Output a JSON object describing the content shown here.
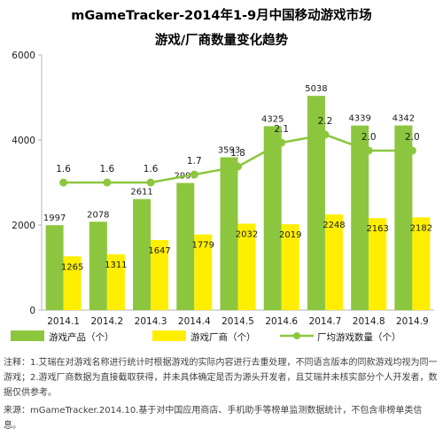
{
  "title": "mGameTracker-2014年1-9月中国移动游戏市场",
  "subtitle": "游戏/厂商数量变化趋势",
  "notes": {
    "note1": "注释：1.艾瑞在对游戏名称进行统计时根据游戏的实际内容进行去重处理，不同语言版本的同款游戏均视为同一游戏；2.游戏厂商数据为直接截取获得，并未具体确定是否为源头开发者，且艾瑞并未核实部分个人开发者，数据仅供参考。",
    "note2": "来源：mGameTracker.2014.10.基于对中国应用商店、手机助手等榜单监测数据统计，不包含非榜单类信息。"
  },
  "colors": {
    "products": "#8cc63f",
    "vendors": "#ffee00",
    "ratio": "#8cc63f",
    "axis": "#b3b3b3"
  },
  "chart_data": {
    "type": "bar",
    "categories": [
      "2014.1",
      "2014.2",
      "2014.3",
      "2014.4",
      "2014.5",
      "2014.6",
      "2014.7",
      "2014.8",
      "2014.9"
    ],
    "series": [
      {
        "name": "游戏产品（个）",
        "type": "bar",
        "values": [
          1997,
          2078,
          2611,
          2990,
          3593,
          4325,
          5038,
          4339,
          4342
        ]
      },
      {
        "name": "游戏厂商（个）",
        "type": "bar",
        "values": [
          1265,
          1311,
          1647,
          1779,
          2032,
          2019,
          2248,
          2163,
          2182
        ]
      },
      {
        "name": "厂均游戏数量（个）",
        "type": "line",
        "values": [
          1.6,
          1.6,
          1.6,
          1.7,
          1.8,
          2.1,
          2.2,
          2.0,
          2.0
        ],
        "labels": [
          "1.6",
          "1.6",
          "1.6",
          "1.7",
          "1.8",
          "2.1",
          "2.2",
          "2.0",
          "2.0"
        ]
      }
    ],
    "ylim": [
      0,
      6000
    ],
    "yticks": [
      0,
      2000,
      4000,
      6000
    ],
    "line_ylim": [
      0,
      3.2
    ],
    "grid": false,
    "legend_position": "bottom"
  }
}
